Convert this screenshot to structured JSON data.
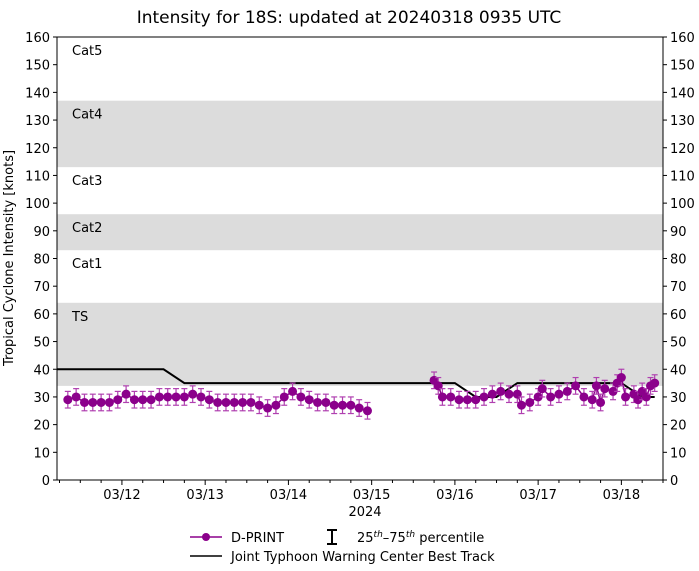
{
  "chart_data": {
    "type": "scatter",
    "title": "Intensity for 18S: updated at 20240318 0935 UTC",
    "xlabel": "2024",
    "ylabel": "Tropical Cyclone Intensity [knots]",
    "x_unit": "day of March 2024 (UTC)",
    "xlim": [
      11.22,
      18.5
    ],
    "ylim": [
      0,
      160
    ],
    "yticks": [
      0,
      10,
      20,
      30,
      40,
      50,
      60,
      70,
      80,
      90,
      100,
      110,
      120,
      130,
      140,
      150,
      160
    ],
    "xticks": [
      {
        "x": 12,
        "label": "03/12"
      },
      {
        "x": 13,
        "label": "03/13"
      },
      {
        "x": 14,
        "label": "03/14"
      },
      {
        "x": 15,
        "label": "03/15"
      },
      {
        "x": 16,
        "label": "03/16"
      },
      {
        "x": 17,
        "label": "03/17"
      },
      {
        "x": 18,
        "label": "03/18"
      }
    ],
    "grid": false,
    "legend_position": "bottom",
    "bands": [
      {
        "label": "TS",
        "from": 34,
        "to": 64,
        "shaded": true
      },
      {
        "label": "Cat1",
        "from": 64,
        "to": 83,
        "shaded": false
      },
      {
        "label": "Cat2",
        "from": 83,
        "to": 96,
        "shaded": true
      },
      {
        "label": "Cat3",
        "from": 96,
        "to": 113,
        "shaded": false
      },
      {
        "label": "Cat4",
        "from": 113,
        "to": 137,
        "shaded": true
      },
      {
        "label": "Cat5",
        "from": 137,
        "to": 160,
        "shaded": false
      }
    ],
    "series": [
      {
        "name": "D-PRINT",
        "color": "#8b008b",
        "error_bar_label": "25th–75th percentile",
        "x": [
          11.35,
          11.45,
          11.55,
          11.65,
          11.75,
          11.85,
          11.95,
          12.05,
          12.15,
          12.25,
          12.35,
          12.45,
          12.55,
          12.65,
          12.75,
          12.85,
          12.95,
          13.05,
          13.15,
          13.25,
          13.35,
          13.45,
          13.55,
          13.65,
          13.75,
          13.85,
          13.95,
          14.05,
          14.15,
          14.25,
          14.35,
          14.45,
          14.55,
          14.65,
          14.75,
          14.85,
          14.95,
          15.75,
          15.8,
          15.85,
          15.95,
          16.05,
          16.15,
          16.25,
          16.35,
          16.45,
          16.55,
          16.65,
          16.75,
          16.8,
          16.9,
          17.0,
          17.05,
          17.15,
          17.25,
          17.35,
          17.45,
          17.55,
          17.65,
          17.7,
          17.75,
          17.8,
          17.9,
          17.95,
          18.0,
          18.05,
          18.15,
          18.2,
          18.25,
          18.3,
          18.35,
          18.4
        ],
        "y": [
          29,
          30,
          28,
          28,
          28,
          28,
          29,
          31,
          29,
          29,
          29,
          30,
          30,
          30,
          30,
          31,
          30,
          29,
          28,
          28,
          28,
          28,
          28,
          27,
          26,
          27,
          30,
          32,
          30,
          29,
          28,
          28,
          27,
          27,
          27,
          26,
          25,
          36,
          34,
          30,
          30,
          29,
          29,
          29,
          30,
          31,
          32,
          31,
          31,
          27,
          28,
          30,
          33,
          30,
          31,
          32,
          34,
          30,
          29,
          34,
          28,
          33,
          32,
          35,
          37,
          30,
          31,
          29,
          32,
          30,
          34,
          35
        ],
        "error_halfwidth": 3
      },
      {
        "name": "Joint Typhoon Warning Center Best Track",
        "color": "#000000",
        "x": [
          11.22,
          12.5,
          12.75,
          16.0,
          16.25,
          16.5,
          16.75,
          18.0,
          18.25,
          18.4
        ],
        "y": [
          40,
          40,
          35,
          35,
          30,
          30,
          35,
          35,
          30,
          30
        ]
      }
    ]
  },
  "legend": {
    "dprint": "D-PRINT",
    "pct_base": "25",
    "pct_mid": "–75",
    "pct_sup": "th",
    "pct_tail": " percentile",
    "best_track": "Joint Typhoon Warning Center Best Track"
  }
}
